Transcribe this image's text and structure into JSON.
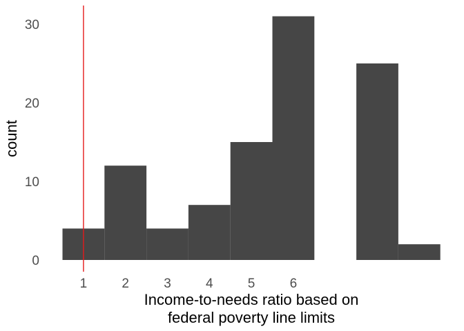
{
  "chart_data": {
    "type": "bar",
    "subtype": "histogram",
    "xlabel": [
      "Income-to-needs ratio based on",
      "federal poverty line limits"
    ],
    "ylabel": "count",
    "bins": [
      {
        "x_start": 0.5,
        "x_end": 1.5,
        "count": 4
      },
      {
        "x_start": 1.5,
        "x_end": 2.5,
        "count": 12
      },
      {
        "x_start": 2.5,
        "x_end": 3.5,
        "count": 4
      },
      {
        "x_start": 3.5,
        "x_end": 4.5,
        "count": 7
      },
      {
        "x_start": 4.5,
        "x_end": 5.5,
        "count": 15
      },
      {
        "x_start": 5.5,
        "x_end": 6.5,
        "count": 31
      },
      {
        "x_start": 6.5,
        "x_end": 7.5,
        "count": 0
      },
      {
        "x_start": 7.5,
        "x_end": 8.5,
        "count": 25
      },
      {
        "x_start": 8.5,
        "x_end": 9.5,
        "count": 2
      }
    ],
    "x_ticks": [
      1,
      2,
      3,
      4,
      5,
      6
    ],
    "y_ticks": [
      0,
      10,
      20,
      30
    ],
    "xlim": [
      0.5,
      9.5
    ],
    "ylim": [
      0,
      31
    ],
    "reference_line": {
      "x": 1,
      "color": "#e41a1c"
    },
    "bar_color": "#464646",
    "grid": false
  }
}
